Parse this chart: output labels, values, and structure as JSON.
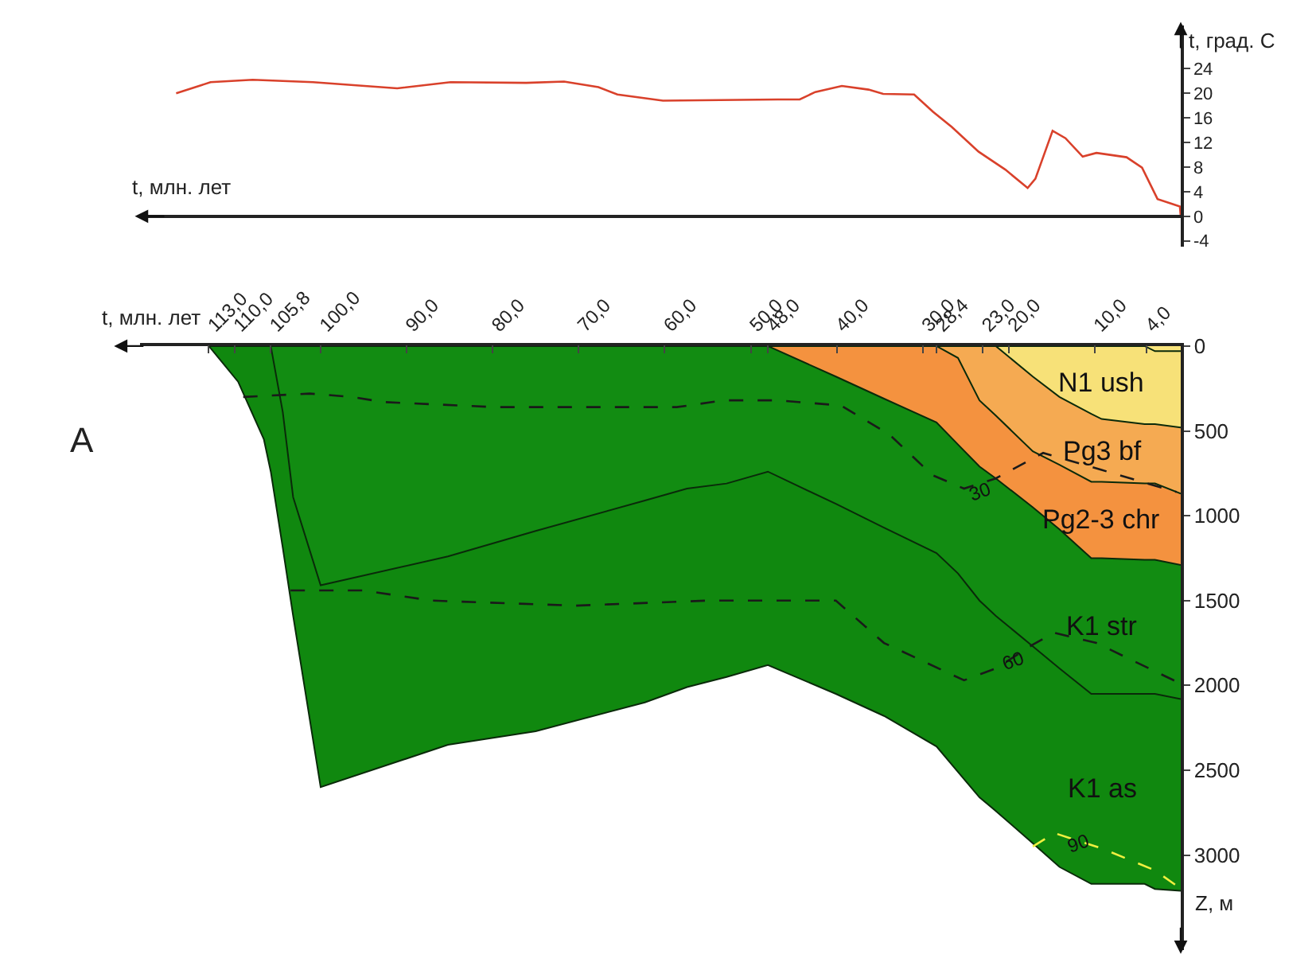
{
  "chart_data": [
    {
      "type": "line",
      "xlabel": "t, млн. лет",
      "ylabel": "t, град. С",
      "xlim": [
        121,
        0
      ],
      "ylim": [
        -5,
        31
      ],
      "yticks": [
        -4,
        0,
        4,
        8,
        12,
        16,
        20,
        24
      ],
      "tick_labels": "y",
      "marker": "none",
      "line_style": "solid",
      "series": [
        {
          "color": "#d9412b",
          "x": [
            116.8,
            112.8,
            107.9,
            100.9,
            91.1,
            84.9,
            76.1,
            71.7,
            67.7,
            65.5,
            60.2,
            46.9,
            44.3,
            42.5,
            39.4,
            36.3,
            34.6,
            31.0,
            28.8,
            26.6,
            23.5,
            20.4,
            17.8,
            16.9,
            14.9,
            13.4,
            11.4,
            9.8,
            6.3,
            4.5,
            2.7,
            0.1,
            0
          ],
          "values": [
            20.0,
            21.8,
            22.2,
            21.8,
            20.8,
            21.8,
            21.7,
            21.9,
            21.0,
            19.8,
            18.8,
            19.0,
            19.0,
            20.2,
            21.2,
            20.6,
            19.9,
            19.8,
            17.0,
            14.5,
            10.5,
            7.6,
            4.6,
            6.1,
            13.9,
            12.7,
            9.7,
            10.3,
            9.6,
            7.9,
            2.8,
            1.6,
            0.0
          ]
        }
      ]
    },
    {
      "type": "area",
      "xlabel": "t, млн. лет",
      "ylabel": "Z, м",
      "xlim": [
        121,
        0
      ],
      "ylim": [
        3560,
        0
      ],
      "xticks": [
        {
          "value": 113,
          "label": "113,0"
        },
        {
          "value": 110,
          "label": "110,0"
        },
        {
          "value": 105.8,
          "label": "105,8"
        },
        {
          "value": 100,
          "label": "100,0"
        },
        {
          "value": 90,
          "label": "90,0"
        },
        {
          "value": 80,
          "label": "80,0"
        },
        {
          "value": 70,
          "label": "70,0"
        },
        {
          "value": 60,
          "label": "60,0"
        },
        {
          "value": 50,
          "label": "50,0"
        },
        {
          "value": 48,
          "label": "48,0"
        },
        {
          "value": 40,
          "label": "40,0"
        },
        {
          "value": 30,
          "label": "30,0"
        },
        {
          "value": 28.4,
          "label": "28,4"
        },
        {
          "value": 23,
          "label": "23,0"
        },
        {
          "value": 20,
          "label": "20,0"
        },
        {
          "value": 10,
          "label": "10,0"
        },
        {
          "value": 4,
          "label": "4,0"
        }
      ],
      "yticks": [
        0,
        500,
        1000,
        1500,
        2000,
        2500,
        3000
      ],
      "stacked": true,
      "x": [
        113,
        109.6,
        106.6,
        105.8,
        104.4,
        103.2,
        100,
        85.2,
        75,
        62.3,
        57.4,
        52.8,
        48,
        40.1,
        34.5,
        28.4,
        25.9,
        23.4,
        21.5,
        17.2,
        14.1,
        10.4,
        9.2,
        4.2,
        3.0,
        0
      ],
      "series": [
        {
          "type": "area",
          "color": "#f8e47c",
          "values": [
            0,
            0,
            0,
            0,
            0,
            0,
            0,
            0,
            0,
            0,
            0,
            0,
            0,
            0,
            0,
            0,
            0,
            0,
            0,
            0,
            0,
            0,
            0,
            0,
            30,
            30
          ]
        },
        {
          "type": "area",
          "name": "N1 ush",
          "color": "#f7e178",
          "values": [
            0,
            0,
            0,
            0,
            0,
            0,
            0,
            0,
            0,
            0,
            0,
            0,
            0,
            0,
            0,
            0,
            0,
            0,
            0,
            180,
            300,
            400,
            430,
            460,
            430,
            450
          ]
        },
        {
          "type": "area",
          "name": "Pg3 bf",
          "color": "#f5aa52",
          "values": [
            0,
            0,
            0,
            0,
            0,
            0,
            0,
            0,
            0,
            0,
            0,
            0,
            0,
            0,
            0,
            0,
            70,
            320,
            410,
            440,
            400,
            400,
            370,
            350,
            350,
            390
          ]
        },
        {
          "type": "area",
          "name": "Pg2-3 chr",
          "color": "#f4923f",
          "values": [
            0,
            0,
            0,
            0,
            0,
            0,
            0,
            0,
            0,
            0,
            0,
            0,
            0,
            180,
            310,
            450,
            510,
            390,
            370,
            330,
            380,
            450,
            450,
            450,
            450,
            420
          ]
        },
        {
          "type": "area",
          "name": "K1 str",
          "color": "#128c12",
          "values": [
            0,
            0,
            0,
            0,
            390,
            890,
            1410,
            1240,
            1090,
            910,
            840,
            810,
            740,
            750,
            760,
            770,
            760,
            790,
            810,
            820,
            820,
            800,
            800,
            790,
            790,
            790
          ]
        },
        {
          "type": "area",
          "name": "K1 as",
          "color": "#10880f",
          "values": [
            0,
            210,
            550,
            740,
            800,
            700,
            1190,
            1110,
            1180,
            1190,
            1170,
            1140,
            1140,
            1120,
            1110,
            1140,
            1170,
            1160,
            1150,
            1160,
            1170,
            1120,
            1120,
            1120,
            1150,
            1130
          ]
        },
        {
          "type": "line",
          "line_style": "dashed",
          "color": "#1a1a1a",
          "x": [
            109.0,
            101.3,
            96.4,
            92.7,
            79.7,
            58.6,
            53.1,
            46.9,
            39.5,
            33.9,
            28.9,
            25.2,
            21.5,
            16.0,
            9.2,
            0.5
          ],
          "values": [
            300,
            280,
            300,
            330,
            360,
            360,
            320,
            320,
            350,
            520,
            760,
            840,
            780,
            630,
            730,
            860
          ]
        },
        {
          "type": "line",
          "line_style": "dashed",
          "color": "#1a1a1a",
          "x": [
            103.5,
            95.1,
            87.1,
            70.4,
            54.9,
            40.1,
            34.5,
            25.2,
            21.5,
            17.2,
            14.7,
            9.8,
            0
          ],
          "values": [
            1440,
            1440,
            1500,
            1530,
            1500,
            1500,
            1750,
            1970,
            1900,
            1760,
            1690,
            1750,
            1990
          ]
        },
        {
          "type": "line",
          "line_style": "dashed",
          "color": "#f0f040",
          "x": [
            17.2,
            14.7,
            9.2,
            3.0,
            0.5
          ],
          "values": [
            2950,
            2870,
            2960,
            3090,
            3180
          ]
        }
      ],
      "annotations": [
        "A",
        {
          "text": "30",
          "x": 23.4,
          "y": 856
        },
        {
          "text": "60",
          "x": 19.4,
          "y": 1856
        },
        {
          "text": "90",
          "x": 11.9,
          "y": 2934
        }
      ]
    }
  ]
}
